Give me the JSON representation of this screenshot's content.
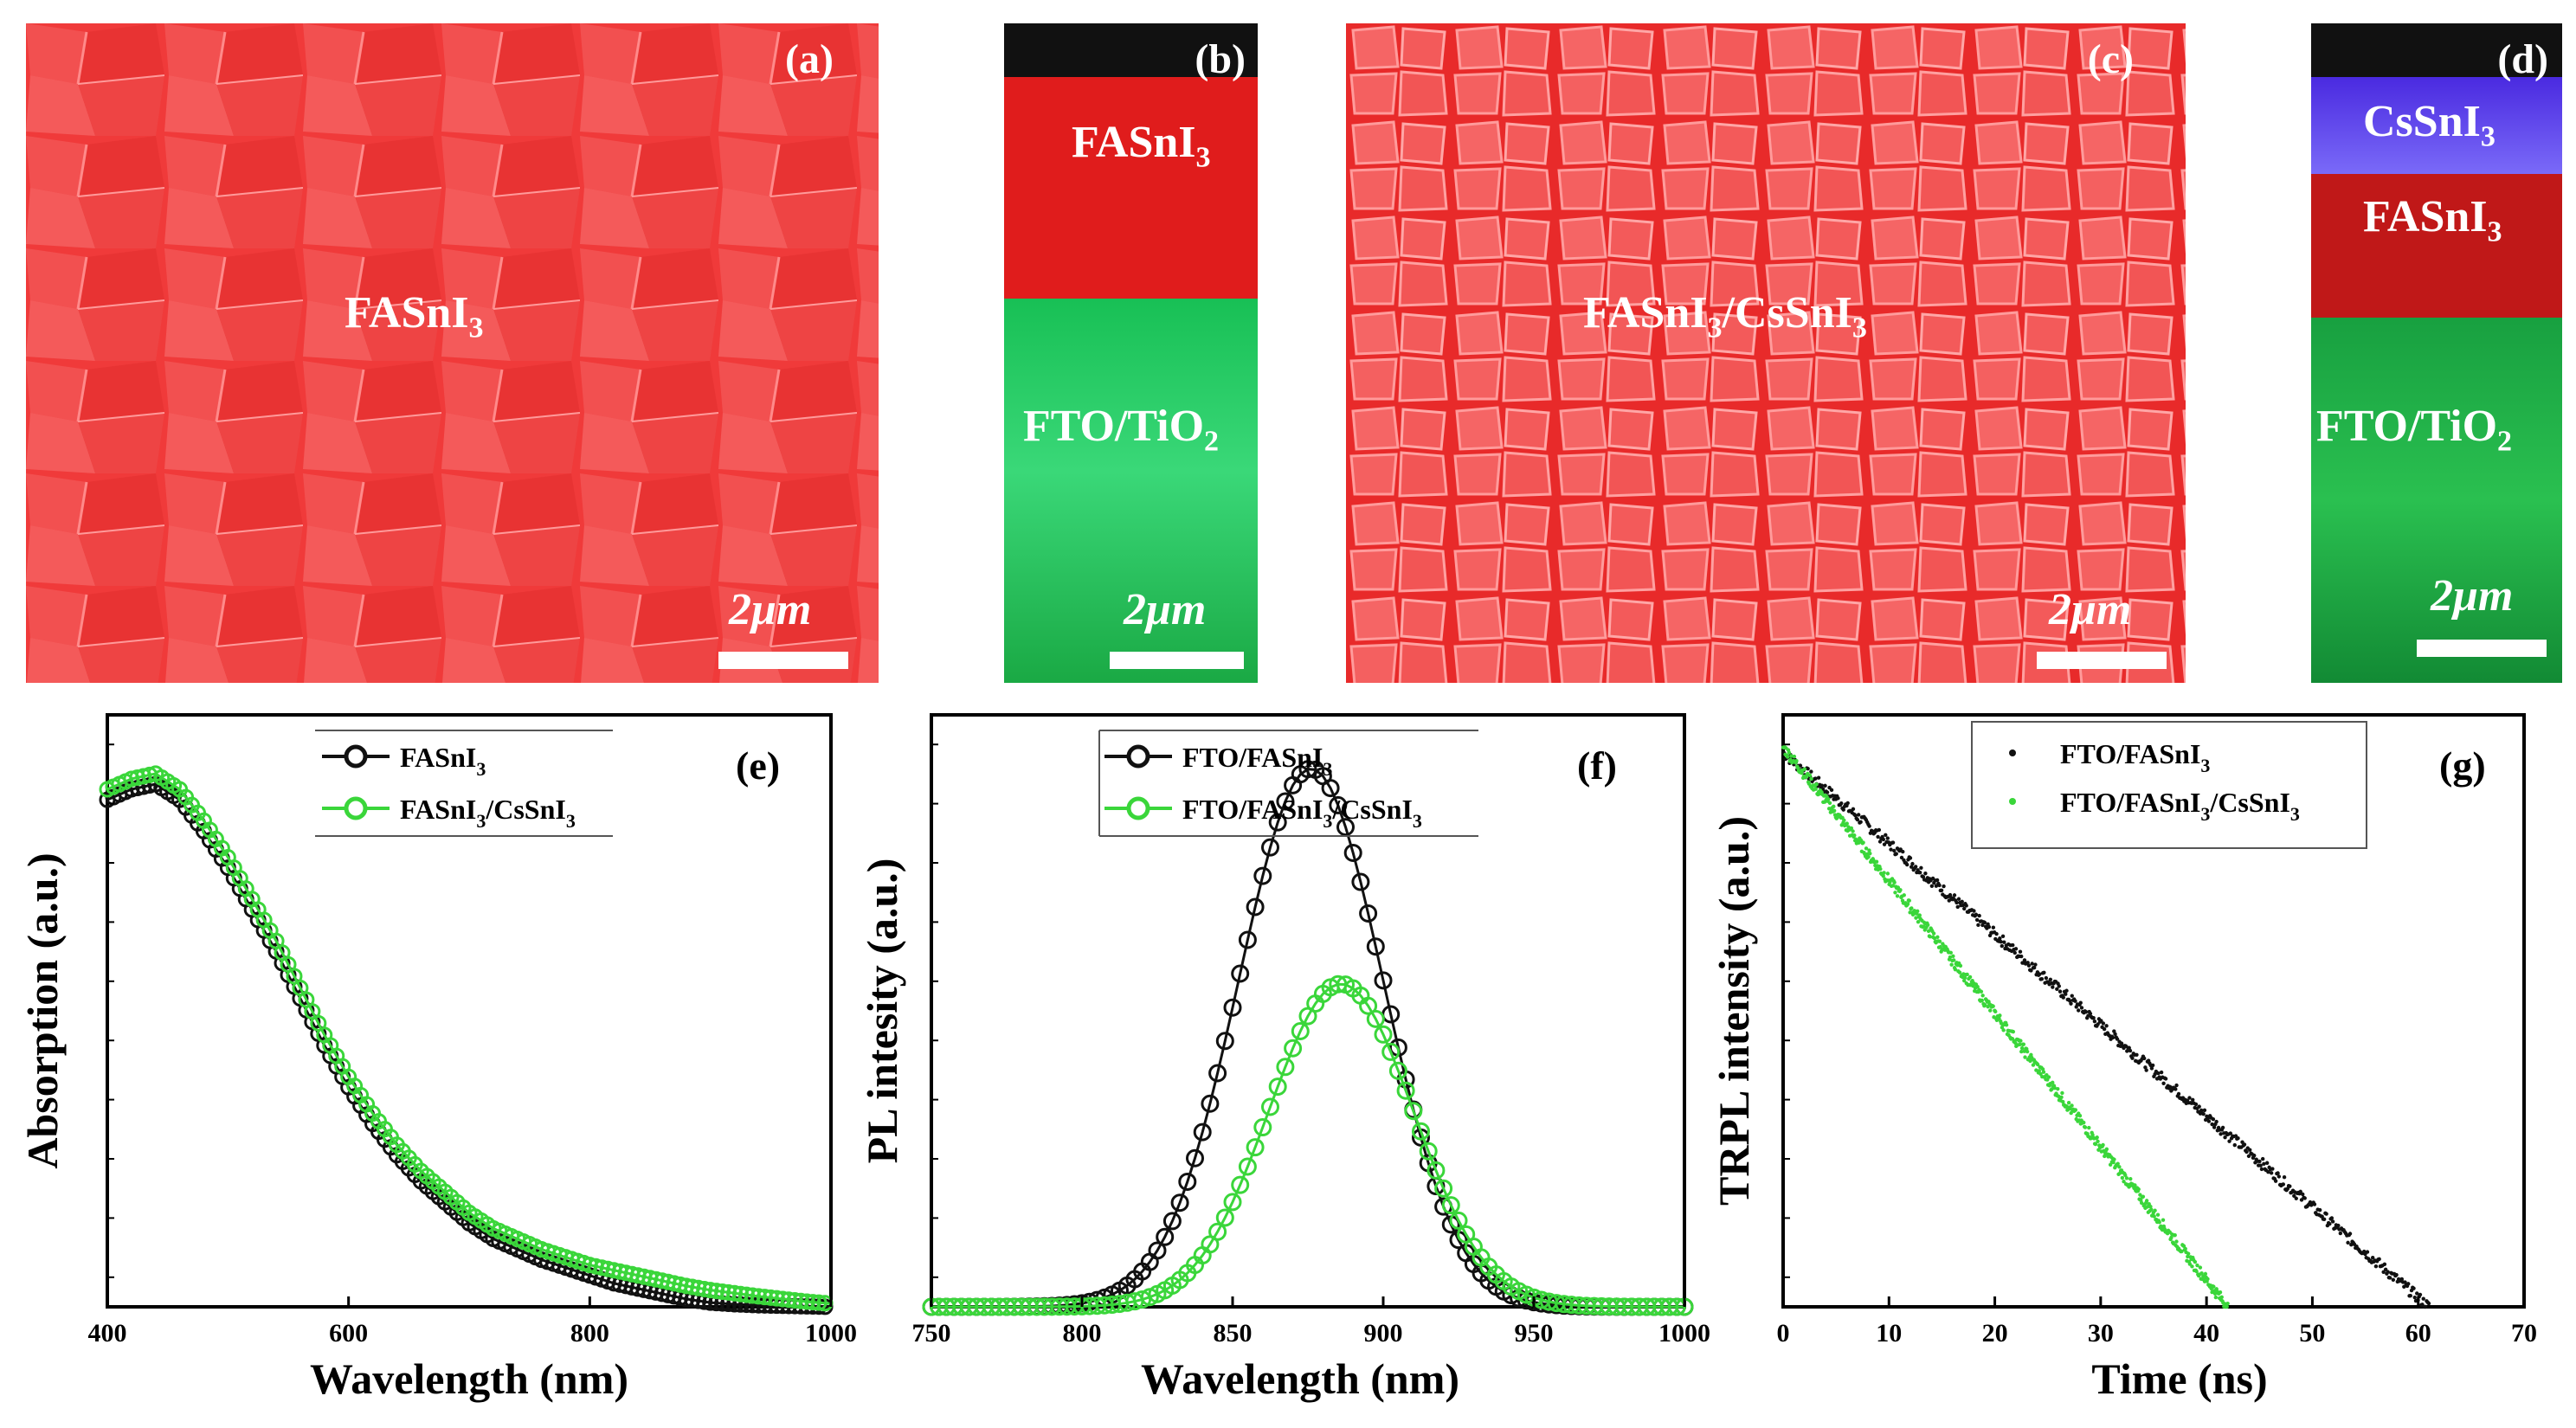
{
  "sem": {
    "a": {
      "tag": "(a)",
      "material": "FASnI",
      "material_sub": "3",
      "scale": "2μm"
    },
    "b": {
      "tag": "(b)",
      "top": "FASnI",
      "top_sub": "3",
      "bottom": "FTO/TiO",
      "bottom_sub": "2",
      "scale": "2μm"
    },
    "c": {
      "tag": "(c)",
      "mat1": "FASnI",
      "mat1_sub": "3",
      "sep": "/CsSnI",
      "mat2_sub": "3",
      "scale": "2μm"
    },
    "d": {
      "tag": "(d)",
      "top": "CsSnI",
      "top_sub": "3",
      "mid": "FASnI",
      "mid_sub": "3",
      "bottom": "FTO/TiO",
      "bottom_sub": "2",
      "scale": "2μm"
    }
  },
  "colors": {
    "fasni3_black": "#111111",
    "fasni3_cssni3_green": "#3ad63a",
    "sem_red": "#f03a3a",
    "fto_green": "#1ec45a",
    "cssni3_blue": "#5a3ae8"
  },
  "chart_data": [
    {
      "type": "line",
      "panel_tag": "(e)",
      "xlabel": "Wavelength (nm)",
      "ylabel": "Absorption (a.u.)",
      "xlim": [
        400,
        1000
      ],
      "ylim": [
        0,
        1
      ],
      "xticks": [
        "400",
        "600",
        "800",
        "1000"
      ],
      "legend": [
        {
          "base": "FASnI",
          "sub": "3",
          "rest": ""
        },
        {
          "base": "FASnI",
          "sub": "3",
          "rest": "/CsSnI",
          "sub2": "3"
        }
      ],
      "x": [
        400,
        420,
        440,
        460,
        480,
        500,
        520,
        540,
        560,
        580,
        600,
        620,
        640,
        660,
        680,
        700,
        720,
        740,
        760,
        780,
        800,
        820,
        840,
        860,
        880,
        900,
        920,
        940,
        960,
        980,
        1000
      ],
      "series": [
        {
          "name": "FASnI3",
          "values": [
            0.97,
            0.99,
            1.0,
            0.97,
            0.91,
            0.84,
            0.76,
            0.68,
            0.59,
            0.5,
            0.42,
            0.35,
            0.29,
            0.24,
            0.2,
            0.16,
            0.13,
            0.11,
            0.09,
            0.075,
            0.06,
            0.045,
            0.035,
            0.025,
            0.015,
            0.008,
            0.005,
            0.003,
            0.002,
            0.001,
            0.0
          ]
        },
        {
          "name": "FASnI3/CsSnI3",
          "values": [
            0.99,
            1.01,
            1.02,
            0.99,
            0.93,
            0.86,
            0.78,
            0.7,
            0.61,
            0.52,
            0.44,
            0.37,
            0.31,
            0.26,
            0.22,
            0.18,
            0.15,
            0.13,
            0.11,
            0.095,
            0.08,
            0.07,
            0.06,
            0.05,
            0.04,
            0.032,
            0.026,
            0.02,
            0.015,
            0.01,
            0.006
          ]
        }
      ]
    },
    {
      "type": "line",
      "panel_tag": "(f)",
      "xlabel": "Wavelength (nm)",
      "ylabel": "PL intesity (a.u.)",
      "xlim": [
        750,
        1000
      ],
      "ylim": [
        0,
        1.1
      ],
      "xticks": [
        "750",
        "800",
        "850",
        "900",
        "950",
        "1000"
      ],
      "legend": [
        {
          "base": "FTO/FASnI",
          "sub": "3",
          "rest": ""
        },
        {
          "base": "FTO/FASnI",
          "sub": "3",
          "rest": "/CsSnI",
          "sub2": "3"
        }
      ],
      "series": [
        {
          "name": "FTO/FASnI3",
          "peak_x": 876,
          "peak_y": 1.0,
          "width": 24
        },
        {
          "name": "FTO/FASnI3/CsSnI3",
          "peak_x": 886,
          "peak_y": 0.6,
          "width": 24
        }
      ]
    },
    {
      "type": "scatter",
      "panel_tag": "(g)",
      "xlabel": "Time (ns)",
      "ylabel": "TRPL intensity (a.u.)",
      "xlim": [
        0,
        70
      ],
      "ylim": [
        0,
        1
      ],
      "xticks": [
        "0",
        "10",
        "20",
        "30",
        "40",
        "50",
        "60",
        "70"
      ],
      "legend": [
        {
          "base": "FTO/FASnI",
          "sub": "3",
          "rest": ""
        },
        {
          "base": "FTO/FASnI",
          "sub": "3",
          "rest": "/CsSnI",
          "sub2": "3"
        }
      ],
      "series": [
        {
          "name": "FTO/FASnI3",
          "x_start": 0,
          "x_end": 61,
          "y_start": 0.97,
          "y_end": 0.0
        },
        {
          "name": "FTO/FASnI3/CsSnI3",
          "x_start": 0,
          "x_end": 42,
          "y_start": 0.98,
          "y_end": 0.0
        }
      ]
    }
  ]
}
